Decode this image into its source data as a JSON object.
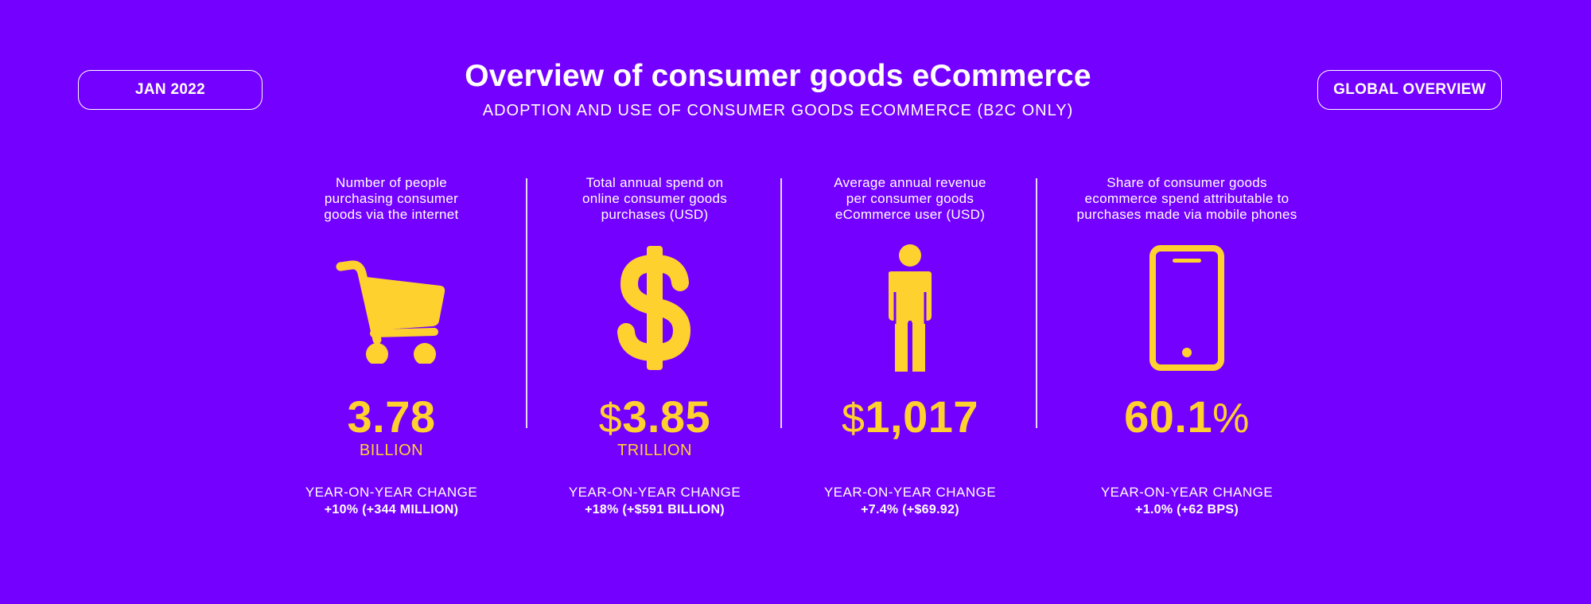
{
  "header": {
    "date_badge": "JAN 2022",
    "scope_badge": "GLOBAL OVERVIEW",
    "title": "Overview of consumer goods eCommerce",
    "subtitle": "ADOPTION AND USE OF CONSUMER GOODS ECOMMERCE (B2C ONLY)"
  },
  "colors": {
    "background": "#7400FF",
    "accent": "#FFD12E",
    "text": "#FFFFFF"
  },
  "metrics": [
    {
      "desc_lines": [
        "Number of people",
        "purchasing consumer",
        "goods via the internet"
      ],
      "icon": "shopping-cart-icon",
      "prefix": "",
      "value": "3.78",
      "suffix": "",
      "unit": "BILLION",
      "yoy_label": "YEAR-ON-YEAR CHANGE",
      "yoy_value": "+10% (+344 MILLION)"
    },
    {
      "desc_lines": [
        "Total annual spend on",
        "online consumer goods",
        "purchases (USD)"
      ],
      "icon": "dollar-sign-icon",
      "prefix": "$",
      "value": "3.85",
      "suffix": "",
      "unit": "TRILLION",
      "yoy_label": "YEAR-ON-YEAR CHANGE",
      "yoy_value": "+18% (+$591 BILLION)"
    },
    {
      "desc_lines": [
        "Average annual revenue",
        "per consumer goods",
        "eCommerce user (USD)"
      ],
      "icon": "person-icon",
      "prefix": "$",
      "value": "1,017",
      "suffix": "",
      "unit": "",
      "yoy_label": "YEAR-ON-YEAR CHANGE",
      "yoy_value": "+7.4% (+$69.92)"
    },
    {
      "desc_lines": [
        "Share of consumer goods",
        "ecommerce spend attributable to",
        "purchases made via mobile phones"
      ],
      "icon": "mobile-phone-icon",
      "prefix": "",
      "value": "60.1",
      "suffix": "%",
      "unit": "",
      "yoy_label": "YEAR-ON-YEAR CHANGE",
      "yoy_value": "+1.0% (+62 BPS)"
    }
  ]
}
